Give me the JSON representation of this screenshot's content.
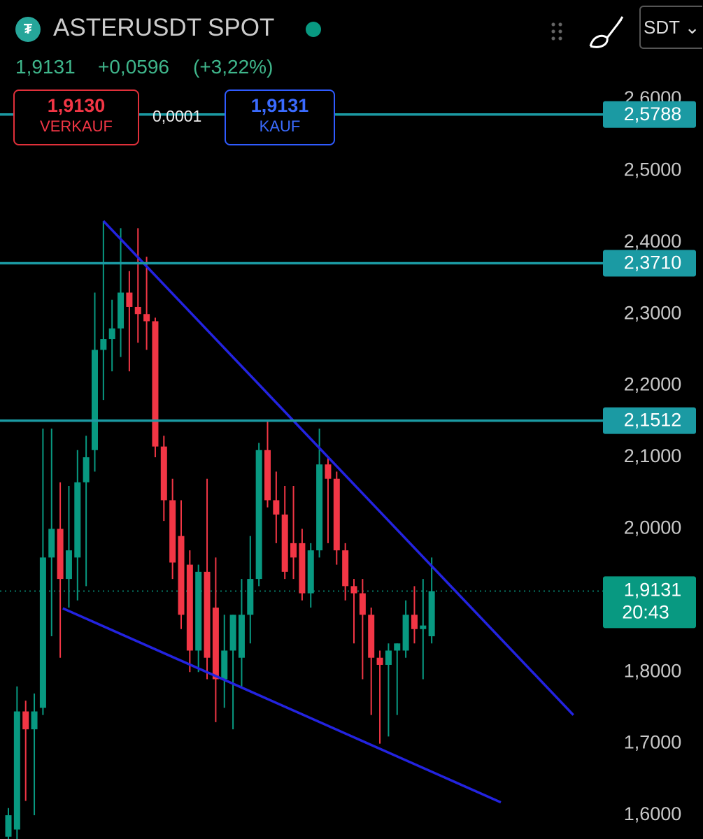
{
  "header": {
    "title": "ASTERUSDT SPOT",
    "price": "1,9131",
    "change": "+0,0596",
    "change_percent": "(+3,22%)",
    "currency": "SDT",
    "sell": {
      "price": "1,9130",
      "label": "VERKAUF"
    },
    "spread": "0,0001",
    "buy": {
      "price": "1,9131",
      "label": "KAUF"
    }
  },
  "chart_data": {
    "type": "candlestick",
    "categories": [
      null,
      null,
      null,
      null,
      null,
      null,
      null,
      null,
      null,
      null,
      null,
      null,
      null,
      null,
      null,
      null,
      null,
      null,
      null,
      null,
      null,
      null,
      null,
      null,
      null,
      null,
      null,
      null,
      null,
      null,
      null,
      null,
      null,
      null,
      null,
      null,
      null,
      null,
      null,
      null,
      null,
      null,
      null,
      null,
      null,
      null,
      null,
      null,
      null,
      null
    ],
    "open": [
      1.57,
      1.58,
      1.745,
      1.72,
      1.75,
      1.96,
      2.0,
      1.93,
      1.96,
      2.065,
      2.11,
      2.25,
      2.265,
      2.28,
      2.33,
      2.31,
      2.3,
      2.29,
      2.115,
      2.04,
      1.99,
      1.95,
      1.83,
      1.94,
      1.89,
      1.79,
      1.83,
      1.82,
      1.88,
      1.93,
      2.11,
      2.04,
      2.02,
      1.98,
      1.98,
      1.91,
      1.97,
      2.09,
      2.07,
      1.97,
      1.92,
      1.91,
      1.88,
      1.82,
      1.81,
      1.83,
      1.83,
      1.88,
      1.86,
      1.85
    ],
    "high": [
      1.61,
      1.78,
      1.76,
      1.77,
      2.14,
      2.14,
      2.065,
      2.06,
      2.11,
      2.13,
      2.33,
      2.43,
      2.32,
      2.42,
      2.36,
      2.42,
      2.38,
      2.295,
      2.13,
      2.07,
      2.04,
      1.97,
      1.95,
      2.07,
      1.96,
      1.88,
      1.88,
      1.93,
      1.99,
      2.12,
      2.15,
      2.08,
      2.06,
      2.06,
      2.0,
      1.98,
      2.14,
      2.1,
      2.08,
      1.98,
      1.93,
      1.93,
      1.89,
      1.83,
      1.84,
      1.84,
      1.9,
      1.92,
      1.93,
      1.96
    ],
    "low": [
      1.55,
      1.55,
      1.62,
      1.6,
      1.74,
      1.85,
      1.82,
      1.89,
      1.9,
      1.92,
      2.08,
      2.18,
      2.22,
      2.24,
      2.22,
      2.26,
      2.25,
      2.1,
      2.011,
      1.93,
      1.86,
      1.8,
      1.8,
      1.79,
      1.73,
      1.75,
      1.72,
      1.78,
      1.84,
      1.92,
      2.03,
      1.98,
      1.93,
      1.93,
      1.9,
      1.89,
      1.96,
      1.98,
      1.95,
      1.9,
      1.84,
      1.79,
      1.74,
      1.7,
      1.71,
      1.74,
      1.82,
      1.84,
      1.79,
      1.84
    ],
    "close": [
      1.6,
      1.745,
      1.72,
      1.745,
      1.96,
      2.0,
      1.93,
      1.97,
      2.065,
      2.1,
      2.25,
      2.265,
      2.28,
      2.33,
      2.31,
      2.3,
      2.29,
      2.115,
      2.04,
      1.953,
      1.88,
      1.83,
      1.94,
      1.82,
      1.79,
      1.83,
      1.88,
      1.88,
      1.93,
      2.11,
      2.04,
      2.02,
      1.94,
      1.96,
      1.91,
      1.97,
      2.09,
      2.07,
      1.97,
      1.92,
      1.91,
      1.88,
      1.82,
      1.81,
      1.83,
      1.84,
      1.88,
      1.86,
      1.865,
      1.913
    ],
    "up_color": "#089981",
    "down_color": "#f23645",
    "ylim": [
      1.5668,
      2.7387
    ],
    "yticks": [
      {
        "value": 1.6,
        "label": "1,6000"
      },
      {
        "value": 1.7,
        "label": "1,7000"
      },
      {
        "value": 1.8,
        "label": "1,8000"
      },
      {
        "value": 2.0,
        "label": "2,0000"
      },
      {
        "value": 2.1,
        "label": "2,1000"
      },
      {
        "value": 2.2,
        "label": "2,2000"
      },
      {
        "value": 2.3,
        "label": "2,3000"
      },
      {
        "value": 2.4,
        "label": "2,4000"
      },
      {
        "value": 2.5,
        "label": "2,5000"
      },
      {
        "value": 2.6,
        "label": "2,6000"
      }
    ],
    "levels": [
      {
        "value": 2.5788,
        "label": "2,5788"
      },
      {
        "value": 2.371,
        "label": "2,3710"
      },
      {
        "value": 2.1512,
        "label": "2,1512"
      }
    ],
    "level_color": "#1b9aa3",
    "current_price": {
      "value": 1.9131,
      "label": "1,9131",
      "countdown": "20:43"
    },
    "trendlines": [
      {
        "from": [
          11,
          2.43
        ],
        "to": [
          65.4,
          1.74
        ]
      },
      {
        "from": [
          6.3,
          1.889
        ],
        "to": [
          57,
          1.618
        ]
      }
    ],
    "trendline_color": "#2323e0"
  }
}
